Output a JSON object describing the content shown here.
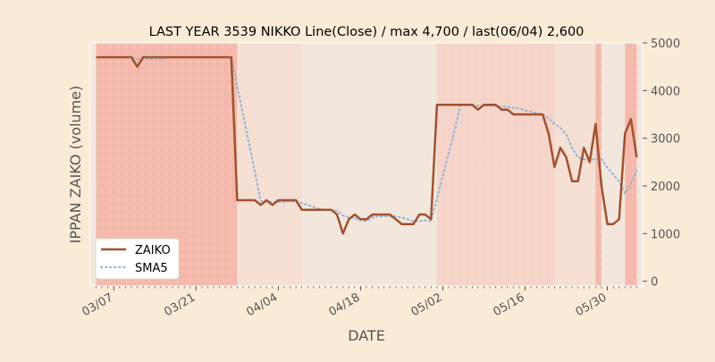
{
  "chart_data": {
    "type": "line",
    "title": "LAST YEAR 3539 NIKKO Line(Close) / max 4,700 / last(06/04) 2,600",
    "xlabel": "DATE",
    "ylabel": "IPPAN ZAIKO (volume)",
    "ylim": [
      -100,
      5000
    ],
    "xlim": [
      "03/03",
      "06/05"
    ],
    "y_ticks": [
      0,
      1000,
      2000,
      3000,
      4000,
      5000
    ],
    "x_ticks": [
      {
        "date": "03/07",
        "label": "03/07"
      },
      {
        "date": "03/21",
        "label": "03/21"
      },
      {
        "date": "04/04",
        "label": "04/04"
      },
      {
        "date": "04/18",
        "label": "04/18"
      },
      {
        "date": "05/02",
        "label": "05/02"
      },
      {
        "date": "05/16",
        "label": "05/16"
      },
      {
        "date": "05/30",
        "label": "05/30"
      }
    ],
    "y_axis_side": "right",
    "grid": false,
    "legend": {
      "position": "lower-left",
      "entries": [
        "ZAIKO",
        "SMA5"
      ]
    },
    "colors": {
      "background": "#faebd7",
      "zaiko": "#a0522d",
      "sma5": "#8fb3d6",
      "band_strong": "#f4b9ac",
      "band_medium": "#f6d3c8",
      "band_light": "#f5dfd3",
      "band_faint": "#f3e6dc"
    },
    "bands": [
      {
        "from": "03/04",
        "to": "03/28",
        "level": "strong"
      },
      {
        "from": "03/28",
        "to": "04/08",
        "level": "light"
      },
      {
        "from": "04/08",
        "to": "05/01",
        "level": "faint"
      },
      {
        "from": "05/01",
        "to": "05/21",
        "level": "medium"
      },
      {
        "from": "05/21",
        "to": "05/28",
        "level": "light"
      },
      {
        "from": "05/28",
        "to": "05/29",
        "level": "strong"
      },
      {
        "from": "05/29",
        "to": "06/02",
        "level": "faint"
      },
      {
        "from": "06/02",
        "to": "06/04",
        "level": "strong"
      }
    ],
    "x": [
      "03/04",
      "03/05",
      "03/06",
      "03/07",
      "03/08",
      "03/09",
      "03/10",
      "03/11",
      "03/12",
      "03/13",
      "03/14",
      "03/15",
      "03/16",
      "03/17",
      "03/18",
      "03/19",
      "03/20",
      "03/21",
      "03/22",
      "03/23",
      "03/24",
      "03/25",
      "03/26",
      "03/27",
      "03/28",
      "03/29",
      "03/30",
      "03/31",
      "04/01",
      "04/02",
      "04/03",
      "04/04",
      "04/05",
      "04/06",
      "04/07",
      "04/08",
      "04/09",
      "04/10",
      "04/11",
      "04/12",
      "04/13",
      "04/14",
      "04/15",
      "04/16",
      "04/17",
      "04/18",
      "04/19",
      "04/20",
      "04/21",
      "04/22",
      "04/23",
      "04/24",
      "04/25",
      "04/26",
      "04/27",
      "04/28",
      "04/29",
      "04/30",
      "05/01",
      "05/02",
      "05/03",
      "05/04",
      "05/05",
      "05/06",
      "05/07",
      "05/08",
      "05/09",
      "05/10",
      "05/11",
      "05/12",
      "05/13",
      "05/14",
      "05/15",
      "05/16",
      "05/17",
      "05/18",
      "05/19",
      "05/20",
      "05/21",
      "05/22",
      "05/23",
      "05/24",
      "05/25",
      "05/26",
      "05/27",
      "05/28",
      "05/29",
      "05/30",
      "05/31",
      "06/01",
      "06/02",
      "06/03",
      "06/04"
    ],
    "series": [
      {
        "name": "ZAIKO",
        "values": [
          4700,
          4700,
          4700,
          4700,
          4700,
          4700,
          4700,
          4500,
          4700,
          4700,
          4700,
          4700,
          4700,
          4700,
          4700,
          4700,
          4700,
          4700,
          4700,
          4700,
          4700,
          4700,
          4700,
          4700,
          1700,
          1700,
          1700,
          1700,
          1600,
          1700,
          1600,
          1700,
          1700,
          1700,
          1700,
          1500,
          1500,
          1500,
          1500,
          1500,
          1500,
          1400,
          1000,
          1300,
          1400,
          1300,
          1300,
          1400,
          1400,
          1400,
          1400,
          1300,
          1200,
          1200,
          1200,
          1400,
          1400,
          1300,
          3700,
          3700,
          3700,
          3700,
          3700,
          3700,
          3700,
          3600,
          3700,
          3700,
          3700,
          3600,
          3600,
          3500,
          3500,
          3500,
          3500,
          3500,
          3500,
          3100,
          2400,
          2800,
          2600,
          2100,
          2100,
          2800,
          2500,
          3300,
          2000,
          1200,
          1200,
          1300,
          3100,
          3400,
          2600
        ]
      },
      {
        "name": "SMA5",
        "values": [
          null,
          null,
          null,
          null,
          4700,
          4700,
          4700,
          4660,
          4660,
          4660,
          4660,
          4660,
          4700,
          4700,
          4700,
          4700,
          4700,
          4700,
          4700,
          4700,
          4700,
          4700,
          4700,
          4700,
          4100,
          3500,
          2900,
          2300,
          1680,
          1680,
          1660,
          1660,
          1660,
          1680,
          1660,
          1640,
          1600,
          1560,
          1520,
          1500,
          1500,
          1480,
          1380,
          1340,
          1320,
          1280,
          1260,
          1340,
          1360,
          1360,
          1360,
          1360,
          1340,
          1300,
          1260,
          1260,
          1280,
          1260,
          1740,
          2220,
          2680,
          3160,
          3700,
          3700,
          3700,
          3680,
          3680,
          3680,
          3680,
          3660,
          3660,
          3640,
          3620,
          3580,
          3560,
          3520,
          3500,
          3420,
          3300,
          3220,
          3080,
          2800,
          2600,
          2560,
          2540,
          2560,
          2560,
          2380,
          2240,
          2100,
          1840,
          2040,
          2320
        ]
      }
    ]
  }
}
